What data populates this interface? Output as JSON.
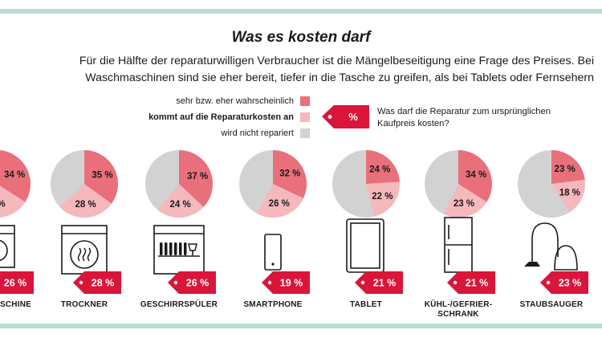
{
  "title": "Was es kosten darf",
  "subtitle": "Für die Hälfte der reparaturwilligen Verbraucher ist die Mängelbeseitigung eine Frage des Preises. Bei Waschmaschinen sind sie eher bereit, tiefer in die Tasche zu greifen, als bei Tablets oder Fernsehern",
  "legend": [
    {
      "label": "sehr bzw. eher wahrscheinlich",
      "color": "#e9707b"
    },
    {
      "label": "kommt auf die Reparaturkosten an",
      "color": "#f5b8bd"
    },
    {
      "label": "wird nicht repariert",
      "color": "#d2d2d2"
    }
  ],
  "tag_symbol": "%",
  "question": "Was darf die Reparatur zum ursprünglichen Kaufpreis kosten?",
  "colors": {
    "primary": "#e9707b",
    "secondary": "#f5b8bd",
    "rest": "#d2d2d2",
    "tag": "#d9163a",
    "band": "#b9dcd6"
  },
  "chart_data": {
    "type": "pie",
    "pie_value_suffix": " %",
    "items": [
      {
        "category": "SCHINE",
        "icon": "washing-machine-icon",
        "sehr_eher": 34,
        "kosten_abhaengig": null,
        "kosten_label": "%",
        "max_kosten": "26 %",
        "max_kosten_value": 26
      },
      {
        "category": "TROCKNER",
        "icon": "dryer-icon",
        "sehr_eher": 35,
        "kosten_abhaengig": 28,
        "max_kosten": "28 %",
        "max_kosten_value": 28
      },
      {
        "category": "GESCHIRRSPÜLER",
        "icon": "dishwasher-icon",
        "sehr_eher": 37,
        "kosten_abhaengig": 24,
        "max_kosten": "26 %",
        "max_kosten_value": 26
      },
      {
        "category": "SMARTPHONE",
        "icon": "smartphone-icon",
        "sehr_eher": 32,
        "kosten_abhaengig": 26,
        "max_kosten": "19 %",
        "max_kosten_value": 19
      },
      {
        "category": "TABLET",
        "icon": "tablet-icon",
        "sehr_eher": 24,
        "kosten_abhaengig": 22,
        "max_kosten": "21 %",
        "max_kosten_value": 21
      },
      {
        "category": "KÜHL-/GEFRIER-\nSCHRANK",
        "icon": "fridge-icon",
        "sehr_eher": 34,
        "kosten_abhaengig": 23,
        "max_kosten": "21 %",
        "max_kosten_value": 21
      },
      {
        "category": "STAUBSAUGER",
        "icon": "vacuum-cleaner-icon",
        "sehr_eher": 23,
        "kosten_abhaengig": 18,
        "max_kosten": "23 %",
        "max_kosten_value": 23
      }
    ]
  }
}
